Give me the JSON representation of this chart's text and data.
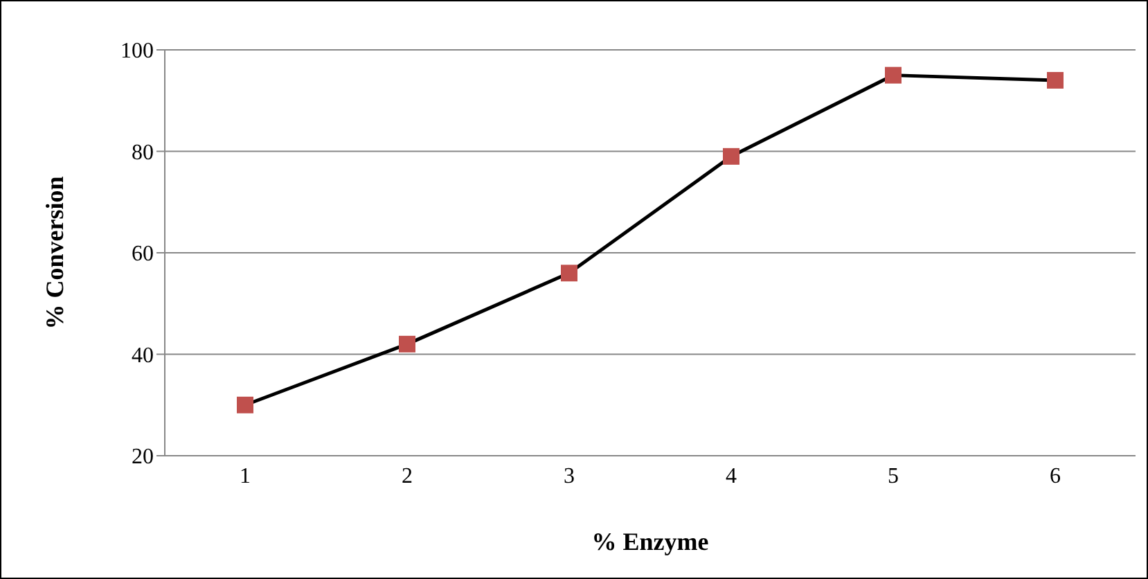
{
  "chart_data": {
    "type": "line",
    "xlabel": "% Enzyme",
    "ylabel": "% Conversion",
    "categories": [
      "1",
      "2",
      "3",
      "4",
      "5",
      "6"
    ],
    "series": [
      {
        "color": "#000000",
        "colors": [
          "#c0504d",
          "#c0504d",
          "#c0504d",
          "#c0504d",
          "#c0504d",
          "#c0504d"
        ],
        "values": [
          30,
          42,
          56,
          79,
          95,
          94
        ]
      }
    ],
    "ylim": [
      20,
      100
    ],
    "yticks": [
      20,
      40,
      60,
      80,
      100
    ],
    "grid": "y",
    "marker": "square",
    "line_style": "solid"
  }
}
